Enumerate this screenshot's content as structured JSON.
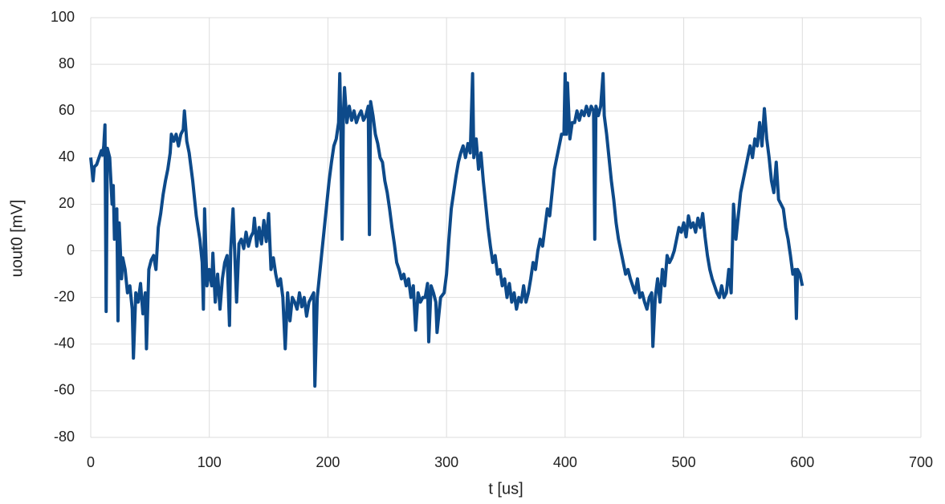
{
  "chart_data": {
    "type": "line",
    "x_label": "t [us]",
    "y_label": "uout0 [mV]",
    "color": "#0d4a8a",
    "grid": true,
    "xlim": [
      0,
      700
    ],
    "xticks": [
      0,
      100,
      200,
      300,
      400,
      500,
      600,
      700
    ],
    "ylim": [
      -80,
      100
    ],
    "yticks": [
      -80,
      -60,
      -40,
      -20,
      0,
      20,
      40,
      60,
      80,
      100
    ],
    "x": [
      0,
      2,
      3,
      5,
      7,
      9,
      10,
      11,
      12,
      13,
      14,
      16,
      18,
      19,
      20,
      22,
      23,
      24,
      26,
      27,
      29,
      31,
      33,
      35,
      36,
      38,
      40,
      42,
      44,
      46,
      47,
      49,
      51,
      53,
      55,
      57,
      59,
      61,
      63,
      65,
      67,
      68,
      70,
      72,
      74,
      76,
      78,
      79,
      81,
      83,
      86,
      89,
      92,
      94,
      95,
      96,
      98,
      100,
      102,
      103,
      105,
      107,
      109,
      111,
      113,
      115,
      117,
      118,
      120,
      121,
      123,
      125,
      127,
      129,
      131,
      133,
      135,
      137,
      138,
      140,
      142,
      144,
      146,
      148,
      150,
      152,
      154,
      156,
      158,
      160,
      162,
      164,
      166,
      168,
      170,
      172,
      174,
      176,
      178,
      180,
      182,
      184,
      186,
      188,
      189,
      191,
      193,
      195,
      197,
      199,
      201,
      203,
      205,
      207,
      209,
      210,
      211,
      212,
      213,
      214,
      216,
      218,
      220,
      222,
      224,
      226,
      228,
      230,
      232,
      234,
      235,
      236,
      238,
      240,
      242,
      244,
      246,
      248,
      250,
      252,
      254,
      256,
      258,
      260,
      262,
      264,
      266,
      268,
      270,
      272,
      274,
      276,
      278,
      280,
      282,
      284,
      285,
      287,
      289,
      291,
      292,
      295,
      298,
      300,
      302,
      304,
      306,
      308,
      310,
      312,
      314,
      316,
      318,
      320,
      322,
      323,
      325,
      327,
      329,
      331,
      333,
      335,
      337,
      339,
      341,
      343,
      345,
      347,
      349,
      351,
      353,
      355,
      357,
      359,
      361,
      363,
      365,
      367,
      369,
      371,
      373,
      375,
      377,
      379,
      381,
      383,
      385,
      387,
      389,
      391,
      393,
      395,
      397,
      399,
      400,
      401,
      402,
      404,
      406,
      408,
      410,
      412,
      414,
      416,
      418,
      420,
      422,
      424,
      425,
      426,
      428,
      430,
      432,
      433,
      435,
      437,
      439,
      441,
      443,
      445,
      447,
      449,
      451,
      453,
      455,
      457,
      459,
      461,
      463,
      465,
      467,
      469,
      471,
      473,
      474,
      476,
      478,
      480,
      482,
      484,
      486,
      488,
      490,
      492,
      494,
      496,
      498,
      500,
      502,
      504,
      506,
      508,
      510,
      512,
      514,
      516,
      518,
      520,
      522,
      524,
      526,
      528,
      530,
      532,
      534,
      536,
      538,
      540,
      542,
      544,
      546,
      548,
      550,
      552,
      554,
      556,
      558,
      560,
      562,
      564,
      566,
      568,
      570,
      572,
      574,
      576,
      578,
      580,
      582,
      584,
      586,
      588,
      590,
      592,
      594,
      595,
      596,
      598,
      600
    ],
    "values": [
      40,
      30,
      36,
      37,
      40,
      43,
      41,
      45,
      54,
      -26,
      44,
      40,
      20,
      28,
      5,
      18,
      -30,
      12,
      -12,
      -3,
      -8,
      -18,
      -15,
      -25,
      -46,
      -18,
      -22,
      -14,
      -27,
      -18,
      -42,
      -8,
      -4,
      -2,
      -8,
      10,
      16,
      24,
      30,
      35,
      42,
      50,
      47,
      50,
      45,
      50,
      52,
      60,
      47,
      42,
      30,
      15,
      5,
      -5,
      -25,
      18,
      -15,
      -8,
      -15,
      -1,
      -22,
      -10,
      -25,
      -12,
      -5,
      -2,
      -32,
      0,
      18,
      5,
      -22,
      3,
      5,
      1,
      8,
      2,
      6,
      8,
      14,
      2,
      10,
      3,
      13,
      4,
      16,
      -8,
      -3,
      -10,
      -15,
      -12,
      -20,
      -42,
      -18,
      -30,
      -20,
      -22,
      -25,
      -18,
      -24,
      -20,
      -28,
      -22,
      -20,
      -18,
      -58,
      -20,
      -10,
      0,
      10,
      20,
      30,
      38,
      45,
      48,
      55,
      76,
      50,
      5,
      58,
      70,
      55,
      62,
      56,
      60,
      55,
      58,
      60,
      56,
      58,
      62,
      7,
      64,
      58,
      50,
      46,
      40,
      38,
      30,
      25,
      18,
      10,
      3,
      -5,
      -8,
      -12,
      -10,
      -15,
      -12,
      -20,
      -15,
      -34,
      -18,
      -22,
      -20,
      -20,
      -14,
      -39,
      -15,
      -18,
      -22,
      -35,
      -20,
      -18,
      -10,
      5,
      18,
      25,
      32,
      38,
      42,
      45,
      40,
      46,
      42,
      76,
      40,
      48,
      35,
      42,
      30,
      20,
      10,
      2,
      -5,
      -2,
      -10,
      -8,
      -15,
      -12,
      -20,
      -14,
      -22,
      -18,
      -25,
      -20,
      -22,
      -15,
      -22,
      -18,
      -12,
      -5,
      -8,
      0,
      5,
      2,
      10,
      18,
      15,
      25,
      35,
      40,
      45,
      50,
      50,
      76,
      50,
      72,
      48,
      55,
      55,
      60,
      56,
      60,
      58,
      62,
      58,
      62,
      60,
      5,
      62,
      58,
      62,
      76,
      58,
      50,
      40,
      30,
      22,
      12,
      5,
      0,
      -5,
      -10,
      -8,
      -12,
      -15,
      -18,
      -12,
      -20,
      -18,
      -22,
      -25,
      -20,
      -18,
      -41,
      -20,
      -12,
      -22,
      -8,
      -15,
      -2,
      -5,
      -3,
      0,
      5,
      10,
      8,
      12,
      6,
      15,
      10,
      12,
      8,
      14,
      10,
      16,
      6,
      -2,
      -8,
      -12,
      -15,
      -18,
      -20,
      -15,
      -20,
      -18,
      -8,
      -18,
      20,
      5,
      15,
      25,
      30,
      35,
      40,
      45,
      40,
      48,
      45,
      55,
      45,
      61,
      48,
      40,
      30,
      25,
      38,
      22,
      20,
      18,
      10,
      5,
      -2,
      -10,
      -8,
      -29,
      -8,
      -10,
      -15
    ]
  }
}
